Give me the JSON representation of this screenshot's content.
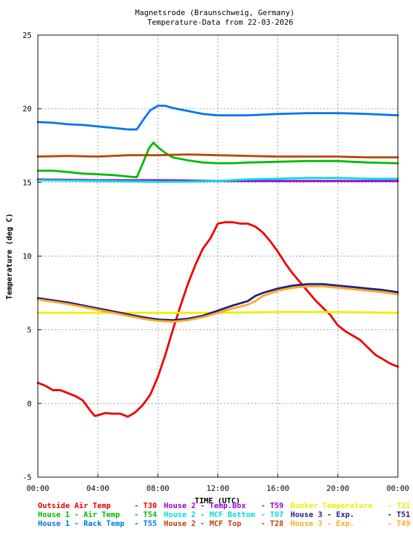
{
  "chart_data": {
    "type": "line",
    "title": "Magnetsrode (Braunschweig, Germany)",
    "subtitle": "Temperature-Data from 22-03-2026",
    "xlabel": "TIME (UTC)",
    "ylabel": "Temperature (deg C)",
    "xlim": [
      0,
      24
    ],
    "ylim": [
      -5,
      25
    ],
    "grid": true,
    "legend_position": "bottom",
    "x_ticks": [
      "00:00",
      "04:00",
      "08:00",
      "12:00",
      "16:00",
      "20:00",
      "00:00"
    ],
    "y_ticks": [
      "-5",
      "0",
      "5",
      "10",
      "15",
      "20",
      "25"
    ],
    "series": [
      {
        "name": "Outside Air Temp",
        "sensor": "T30",
        "color": "#ee0000",
        "x": [
          0,
          0.5,
          1,
          1.5,
          2,
          2.5,
          3,
          3.5,
          3.8,
          4,
          4.5,
          5,
          5.5,
          6,
          6.5,
          7,
          7.5,
          8,
          8.5,
          9,
          9.5,
          10,
          10.5,
          11,
          11.5,
          12,
          12.5,
          13,
          13.5,
          14,
          14.5,
          15,
          15.5,
          16,
          16.5,
          17,
          17.5,
          18,
          18.5,
          19,
          19.5,
          20,
          20.5,
          21,
          21.5,
          22,
          22.5,
          23,
          23.5,
          24
        ],
        "values": [
          1.4,
          1.2,
          0.9,
          0.9,
          0.7,
          0.5,
          0.2,
          -0.5,
          -0.85,
          -0.8,
          -0.65,
          -0.7,
          -0.7,
          -0.9,
          -0.6,
          -0.1,
          0.6,
          1.8,
          3.3,
          5.0,
          6.6,
          8.1,
          9.4,
          10.5,
          11.2,
          12.2,
          12.3,
          12.3,
          12.2,
          12.2,
          12.0,
          11.6,
          11.0,
          10.3,
          9.5,
          8.8,
          8.2,
          7.6,
          7.0,
          6.5,
          6.0,
          5.3,
          4.9,
          4.6,
          4.3,
          3.8,
          3.3,
          3.0,
          2.7,
          2.5
        ]
      },
      {
        "name": "House 1 - Air  Temp",
        "sensor": "T54",
        "color": "#00bb00",
        "x": [
          0,
          1,
          2,
          3,
          4,
          5,
          6,
          6.6,
          7,
          7.4,
          7.7,
          8,
          8.5,
          9,
          10,
          11,
          12,
          13,
          14,
          16,
          18,
          20,
          22,
          24
        ],
        "values": [
          15.8,
          15.8,
          15.7,
          15.6,
          15.55,
          15.5,
          15.4,
          15.35,
          16.3,
          17.3,
          17.7,
          17.4,
          17.0,
          16.7,
          16.5,
          16.35,
          16.3,
          16.3,
          16.35,
          16.4,
          16.45,
          16.45,
          16.35,
          16.3
        ]
      },
      {
        "name": "House 1 - Rack Temp",
        "sensor": "T55",
        "color": "#0077ee",
        "x": [
          0,
          1,
          2,
          3,
          4,
          5,
          6,
          6.6,
          7,
          7.5,
          8,
          8.5,
          9,
          10,
          11,
          12,
          13,
          14,
          16,
          18,
          20,
          22,
          24
        ],
        "values": [
          19.1,
          19.05,
          18.95,
          18.9,
          18.8,
          18.7,
          18.6,
          18.6,
          19.2,
          19.9,
          20.2,
          20.2,
          20.05,
          19.85,
          19.65,
          19.55,
          19.55,
          19.55,
          19.65,
          19.7,
          19.7,
          19.65,
          19.55
        ]
      },
      {
        "name": "House 2 - Temp.Box",
        "sensor": "T59",
        "color": "#9900dd",
        "x": [
          0,
          4,
          8,
          12,
          16,
          20,
          24
        ],
        "values": [
          15.2,
          15.15,
          15.15,
          15.1,
          15.1,
          15.1,
          15.1
        ]
      },
      {
        "name": "House 2 - MCF Bottom",
        "sensor": "T07",
        "color": "#00dddd",
        "x": [
          0,
          4,
          8,
          10,
          12,
          14,
          16,
          18,
          20,
          22,
          24
        ],
        "values": [
          15.15,
          15.1,
          15.05,
          15.05,
          15.1,
          15.2,
          15.25,
          15.3,
          15.3,
          15.25,
          15.25
        ]
      },
      {
        "name": "House 2 - MCF Top",
        "sensor": "T28",
        "color": "#bb4400",
        "x": [
          0,
          2,
          4,
          6,
          8,
          10,
          12,
          14,
          16,
          18,
          20,
          22,
          24
        ],
        "values": [
          16.75,
          16.8,
          16.75,
          16.85,
          16.85,
          16.9,
          16.85,
          16.8,
          16.75,
          16.75,
          16.75,
          16.7,
          16.7
        ]
      },
      {
        "name": "Bunker Temperature",
        "sensor": "T31",
        "color": "#eeee00",
        "x": [
          0,
          4,
          8,
          12,
          16,
          20,
          24
        ],
        "values": [
          6.15,
          6.15,
          6.15,
          6.15,
          6.2,
          6.2,
          6.15
        ]
      },
      {
        "name": "House 3 - Exp.",
        "sensor": "T51",
        "color": "#222288",
        "x": [
          0,
          1,
          2,
          3,
          4,
          5,
          6,
          7,
          8,
          9,
          10,
          11,
          12,
          13,
          14,
          14.5,
          15,
          16,
          17,
          18,
          19,
          20,
          21,
          22,
          23,
          24
        ],
        "values": [
          7.15,
          7.0,
          6.85,
          6.65,
          6.45,
          6.25,
          6.05,
          5.85,
          5.7,
          5.65,
          5.75,
          5.95,
          6.3,
          6.65,
          6.95,
          7.3,
          7.5,
          7.8,
          8.0,
          8.1,
          8.1,
          8.0,
          7.9,
          7.8,
          7.7,
          7.55
        ]
      },
      {
        "name": "House 3 - Exp.",
        "sensor": "T49",
        "color": "#ffaa22",
        "x": [
          0,
          1,
          2,
          3,
          4,
          5,
          6,
          7,
          8,
          9,
          10,
          11,
          12,
          13,
          14,
          14.5,
          15,
          16,
          17,
          18,
          19,
          20,
          21,
          22,
          23,
          24
        ],
        "values": [
          7.05,
          6.9,
          6.75,
          6.55,
          6.35,
          6.15,
          5.95,
          5.75,
          5.6,
          5.55,
          5.65,
          5.85,
          6.15,
          6.45,
          6.7,
          6.95,
          7.3,
          7.65,
          7.85,
          7.95,
          7.95,
          7.85,
          7.75,
          7.65,
          7.55,
          7.4
        ]
      }
    ]
  }
}
